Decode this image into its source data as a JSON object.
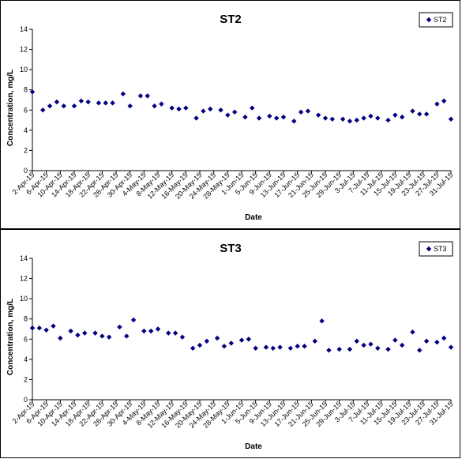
{
  "chart_data": [
    {
      "type": "scatter",
      "title": "ST2",
      "xlabel": "Date",
      "ylabel": "Concentration, mg/L",
      "ylim": [
        0,
        14
      ],
      "yticks": [
        0,
        2,
        4,
        6,
        8,
        10,
        12,
        14
      ],
      "xlim": [
        "2-Apr-15",
        "31-Jul-15"
      ],
      "xticks": [
        "2-Apr-15",
        "6-Apr-15",
        "10-Apr-15",
        "14-Apr-15",
        "18-Apr-15",
        "22-Apr-15",
        "26-Apr-15",
        "30-Apr-15",
        "4-May-15",
        "8-May-15",
        "12-May-15",
        "16-May-15",
        "20-May-15",
        "24-May-15",
        "28-May-15",
        "1-Jun-15",
        "5-Jun-15",
        "9-Jun-15",
        "13-Jun-15",
        "17-Jun-15",
        "21-Jun-15",
        "25-Jun-15",
        "29-Jun-15",
        "3-Jul-15",
        "7-Jul-15",
        "11-Jul-15",
        "15-Jul-15",
        "19-Jul-15",
        "23-Jul-15",
        "27-Jul-15",
        "31-Jul-15"
      ],
      "grid": false,
      "legend": "top-right",
      "series": [
        {
          "name": "ST2",
          "color": "#000080",
          "marker": "diamond",
          "points": [
            {
              "x": "2-Apr-15",
              "y": 7.8
            },
            {
              "x": "5-Apr-15",
              "y": 6.0
            },
            {
              "x": "7-Apr-15",
              "y": 6.4
            },
            {
              "x": "9-Apr-15",
              "y": 6.8
            },
            {
              "x": "11-Apr-15",
              "y": 6.4
            },
            {
              "x": "14-Apr-15",
              "y": 6.4
            },
            {
              "x": "16-Apr-15",
              "y": 6.9
            },
            {
              "x": "18-Apr-15",
              "y": 6.8
            },
            {
              "x": "21-Apr-15",
              "y": 6.7
            },
            {
              "x": "23-Apr-15",
              "y": 6.7
            },
            {
              "x": "25-Apr-15",
              "y": 6.7
            },
            {
              "x": "28-Apr-15",
              "y": 7.6
            },
            {
              "x": "30-Apr-15",
              "y": 6.4
            },
            {
              "x": "3-May-15",
              "y": 7.4
            },
            {
              "x": "5-May-15",
              "y": 7.4
            },
            {
              "x": "7-May-15",
              "y": 6.4
            },
            {
              "x": "9-May-15",
              "y": 6.6
            },
            {
              "x": "12-May-15",
              "y": 6.2
            },
            {
              "x": "14-May-15",
              "y": 6.1
            },
            {
              "x": "16-May-15",
              "y": 6.2
            },
            {
              "x": "19-May-15",
              "y": 5.2
            },
            {
              "x": "21-May-15",
              "y": 5.9
            },
            {
              "x": "23-May-15",
              "y": 6.1
            },
            {
              "x": "26-May-15",
              "y": 6.0
            },
            {
              "x": "28-May-15",
              "y": 5.5
            },
            {
              "x": "30-May-15",
              "y": 5.8
            },
            {
              "x": "2-Jun-15",
              "y": 5.3
            },
            {
              "x": "4-Jun-15",
              "y": 6.2
            },
            {
              "x": "6-Jun-15",
              "y": 5.2
            },
            {
              "x": "9-Jun-15",
              "y": 5.4
            },
            {
              "x": "11-Jun-15",
              "y": 5.2
            },
            {
              "x": "13-Jun-15",
              "y": 5.3
            },
            {
              "x": "16-Jun-15",
              "y": 4.9
            },
            {
              "x": "18-Jun-15",
              "y": 5.8
            },
            {
              "x": "20-Jun-15",
              "y": 5.9
            },
            {
              "x": "23-Jun-15",
              "y": 5.5
            },
            {
              "x": "25-Jun-15",
              "y": 5.2
            },
            {
              "x": "27-Jun-15",
              "y": 5.1
            },
            {
              "x": "30-Jun-15",
              "y": 5.1
            },
            {
              "x": "2-Jul-15",
              "y": 4.9
            },
            {
              "x": "4-Jul-15",
              "y": 5.0
            },
            {
              "x": "6-Jul-15",
              "y": 5.2
            },
            {
              "x": "8-Jul-15",
              "y": 5.4
            },
            {
              "x": "10-Jul-15",
              "y": 5.2
            },
            {
              "x": "13-Jul-15",
              "y": 5.0
            },
            {
              "x": "15-Jul-15",
              "y": 5.5
            },
            {
              "x": "17-Jul-15",
              "y": 5.3
            },
            {
              "x": "20-Jul-15",
              "y": 5.9
            },
            {
              "x": "22-Jul-15",
              "y": 5.6
            },
            {
              "x": "24-Jul-15",
              "y": 5.6
            },
            {
              "x": "27-Jul-15",
              "y": 6.6
            },
            {
              "x": "29-Jul-15",
              "y": 6.9
            },
            {
              "x": "31-Jul-15",
              "y": 5.1
            }
          ]
        }
      ]
    },
    {
      "type": "scatter",
      "title": "ST3",
      "xlabel": "Date",
      "ylabel": "Concentration, mg/L",
      "ylim": [
        0,
        14
      ],
      "yticks": [
        0,
        2,
        4,
        6,
        8,
        10,
        12,
        14
      ],
      "xlim": [
        "2-Apr-15",
        "31-Jul-15"
      ],
      "xticks": [
        "2-Apr-15",
        "6-Apr-15",
        "10-Apr-15",
        "14-Apr-15",
        "18-Apr-15",
        "22-Apr-15",
        "26-Apr-15",
        "30-Apr-15",
        "4-May-15",
        "8-May-15",
        "12-May-15",
        "16-May-15",
        "20-May-15",
        "24-May-15",
        "28-May-15",
        "1-Jun-15",
        "5-Jun-15",
        "9-Jun-15",
        "13-Jun-15",
        "17-Jun-15",
        "21-Jun-15",
        "25-Jun-15",
        "29-Jun-15",
        "3-Jul-15",
        "7-Jul-15",
        "11-Jul-15",
        "15-Jul-15",
        "19-Jul-15",
        "23-Jul-15",
        "27-Jul-15",
        "31-Jul-15"
      ],
      "grid": false,
      "legend": "top-right",
      "series": [
        {
          "name": "ST3",
          "color": "#000080",
          "marker": "diamond",
          "points": [
            {
              "x": "2-Apr-15",
              "y": 7.1
            },
            {
              "x": "4-Apr-15",
              "y": 7.1
            },
            {
              "x": "6-Apr-15",
              "y": 6.9
            },
            {
              "x": "8-Apr-15",
              "y": 7.3
            },
            {
              "x": "10-Apr-15",
              "y": 6.1
            },
            {
              "x": "13-Apr-15",
              "y": 6.8
            },
            {
              "x": "15-Apr-15",
              "y": 6.4
            },
            {
              "x": "17-Apr-15",
              "y": 6.6
            },
            {
              "x": "20-Apr-15",
              "y": 6.6
            },
            {
              "x": "22-Apr-15",
              "y": 6.3
            },
            {
              "x": "24-Apr-15",
              "y": 6.2
            },
            {
              "x": "27-Apr-15",
              "y": 7.2
            },
            {
              "x": "29-Apr-15",
              "y": 6.3
            },
            {
              "x": "1-May-15",
              "y": 7.9
            },
            {
              "x": "4-May-15",
              "y": 6.8
            },
            {
              "x": "6-May-15",
              "y": 6.8
            },
            {
              "x": "8-May-15",
              "y": 7.0
            },
            {
              "x": "11-May-15",
              "y": 6.6
            },
            {
              "x": "13-May-15",
              "y": 6.6
            },
            {
              "x": "15-May-15",
              "y": 6.2
            },
            {
              "x": "18-May-15",
              "y": 5.1
            },
            {
              "x": "20-May-15",
              "y": 5.4
            },
            {
              "x": "22-May-15",
              "y": 5.8
            },
            {
              "x": "25-May-15",
              "y": 6.1
            },
            {
              "x": "27-May-15",
              "y": 5.3
            },
            {
              "x": "29-May-15",
              "y": 5.6
            },
            {
              "x": "1-Jun-15",
              "y": 5.9
            },
            {
              "x": "3-Jun-15",
              "y": 6.0
            },
            {
              "x": "5-Jun-15",
              "y": 5.1
            },
            {
              "x": "8-Jun-15",
              "y": 5.2
            },
            {
              "x": "10-Jun-15",
              "y": 5.1
            },
            {
              "x": "12-Jun-15",
              "y": 5.2
            },
            {
              "x": "15-Jun-15",
              "y": 5.1
            },
            {
              "x": "17-Jun-15",
              "y": 5.3
            },
            {
              "x": "19-Jun-15",
              "y": 5.3
            },
            {
              "x": "22-Jun-15",
              "y": 5.8
            },
            {
              "x": "24-Jun-15",
              "y": 7.8
            },
            {
              "x": "26-Jun-15",
              "y": 4.9
            },
            {
              "x": "29-Jun-15",
              "y": 5.0
            },
            {
              "x": "2-Jul-15",
              "y": 5.0
            },
            {
              "x": "4-Jul-15",
              "y": 5.8
            },
            {
              "x": "6-Jul-15",
              "y": 5.4
            },
            {
              "x": "8-Jul-15",
              "y": 5.5
            },
            {
              "x": "10-Jul-15",
              "y": 5.1
            },
            {
              "x": "13-Jul-15",
              "y": 5.0
            },
            {
              "x": "15-Jul-15",
              "y": 5.9
            },
            {
              "x": "17-Jul-15",
              "y": 5.4
            },
            {
              "x": "20-Jul-15",
              "y": 6.7
            },
            {
              "x": "22-Jul-15",
              "y": 4.9
            },
            {
              "x": "24-Jul-15",
              "y": 5.8
            },
            {
              "x": "27-Jul-15",
              "y": 5.7
            },
            {
              "x": "29-Jul-15",
              "y": 6.1
            },
            {
              "x": "31-Jul-15",
              "y": 5.2
            }
          ]
        }
      ]
    }
  ]
}
